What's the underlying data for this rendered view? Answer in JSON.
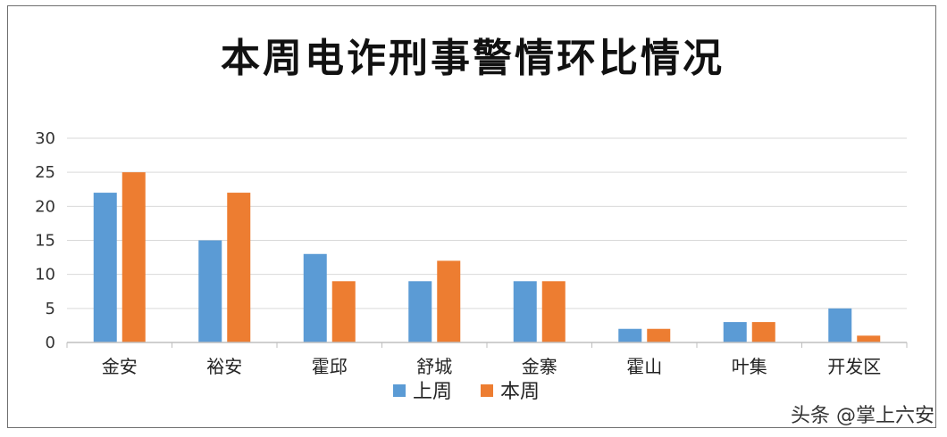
{
  "chart_data": {
    "type": "bar",
    "title": "本周电诈刑事警情环比情况",
    "categories": [
      "金安",
      "裕安",
      "霍邱",
      "舒城",
      "金寨",
      "霍山",
      "叶集",
      "开发区"
    ],
    "series": [
      {
        "name": "上周",
        "color": "#5b9bd5",
        "values": [
          22,
          15,
          13,
          9,
          9,
          2,
          3,
          5
        ]
      },
      {
        "name": "本周",
        "color": "#ed7d31",
        "values": [
          25,
          22,
          9,
          12,
          9,
          2,
          3,
          1
        ]
      }
    ],
    "ylim": [
      0,
      30
    ],
    "yticks": [
      0,
      5,
      10,
      15,
      20,
      25,
      30
    ],
    "grid": true,
    "legend_position": "bottom"
  },
  "watermark": "头条 @掌上六安"
}
